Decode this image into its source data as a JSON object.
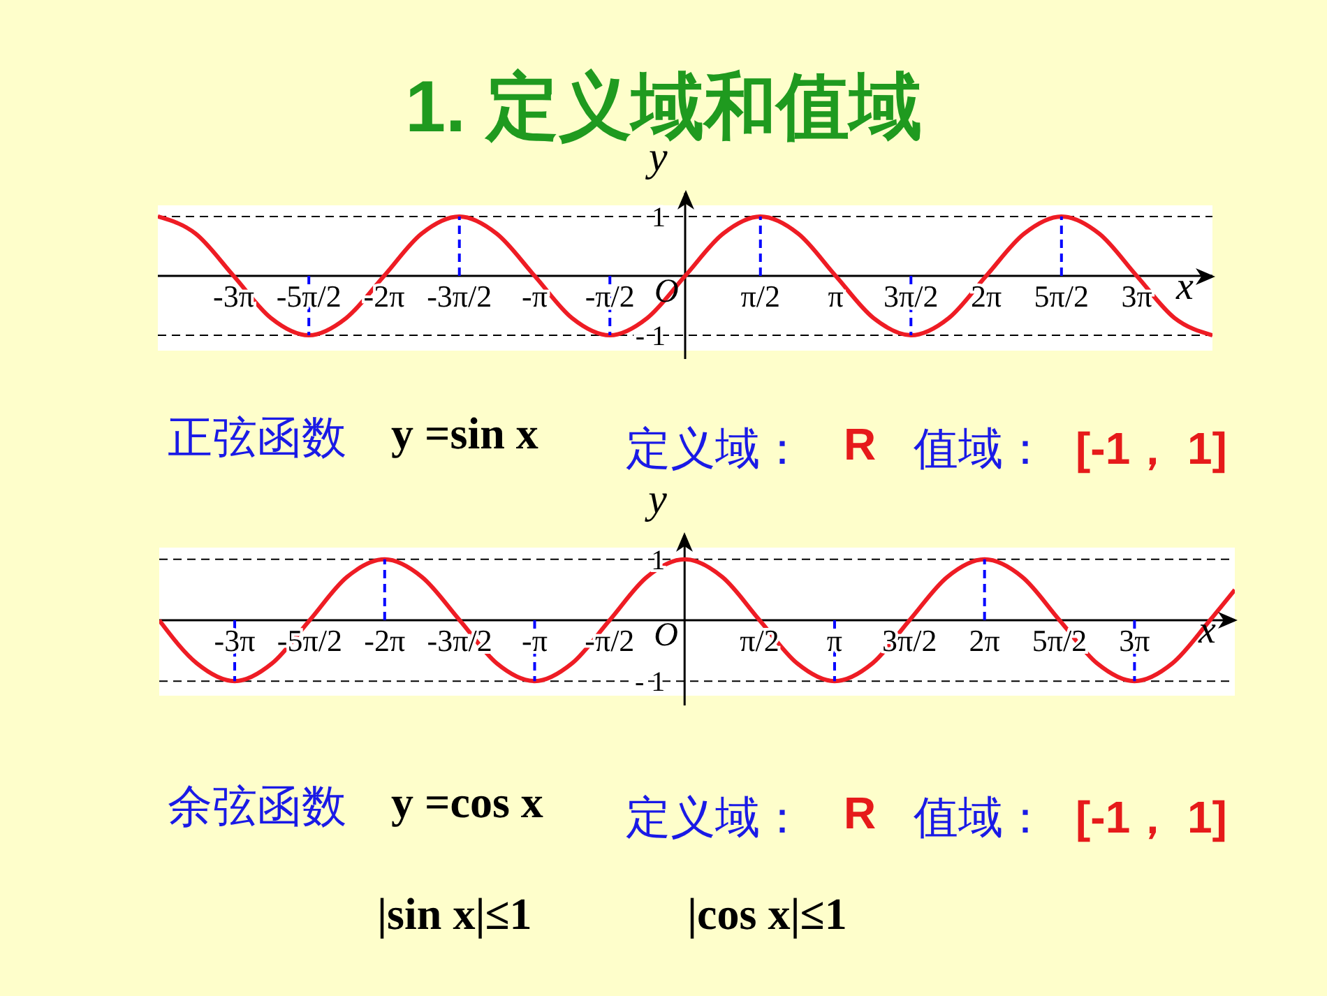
{
  "chart_data": [
    {
      "type": "line",
      "title": "1. 定义域和值域",
      "xlabel": "x",
      "ylabel": "y",
      "xlim": [
        -11.0,
        11.0
      ],
      "ylim": [
        -1.4,
        1.4
      ],
      "xticks": [
        {
          "value": -9.42,
          "label": "-3π"
        },
        {
          "value": -7.85,
          "label": "-5π/2"
        },
        {
          "value": -6.28,
          "label": "-2π"
        },
        {
          "value": -4.71,
          "label": "-3π/2"
        },
        {
          "value": -3.14,
          "label": "-π"
        },
        {
          "value": -1.57,
          "label": "-π/2"
        },
        {
          "value": 1.57,
          "label": "π/2"
        },
        {
          "value": 3.14,
          "label": "π"
        },
        {
          "value": 4.71,
          "label": "3π/2"
        },
        {
          "value": 6.28,
          "label": "2π"
        },
        {
          "value": 7.85,
          "label": "5π/2"
        },
        {
          "value": 9.42,
          "label": "3π"
        }
      ],
      "yticks": [
        1,
        {
          "value": -1,
          "label": "- 1"
        }
      ],
      "marker": "none",
      "line_style": "solid",
      "grid": false,
      "series": [
        {
          "color": "#ee1c24",
          "x": [
            -11.0,
            -10.21,
            -9.42,
            -8.64,
            -7.85,
            -7.07,
            -6.28,
            -5.5,
            -4.71,
            -3.93,
            -3.14,
            -2.36,
            -1.57,
            -0.79,
            0,
            0.79,
            1.57,
            2.36,
            3.14,
            3.93,
            4.71,
            5.5,
            6.28,
            7.07,
            7.85,
            8.64,
            9.42,
            10.21,
            11.0
          ],
          "values": [
            1,
            0.71,
            0,
            -0.71,
            -1,
            -0.71,
            0,
            0.71,
            1,
            0.71,
            0,
            -0.71,
            -1,
            -0.71,
            0,
            0.71,
            1,
            0.71,
            0,
            -0.71,
            -1,
            -0.71,
            0,
            0.71,
            1,
            0.71,
            0,
            -0.71,
            -1
          ]
        },
        {
          "type": "line",
          "line_style": "dashed",
          "color": "#0000ff",
          "x": [
            -7.85,
            -7.85
          ],
          "values": [
            0,
            -1
          ]
        },
        {
          "type": "line",
          "line_style": "dashed",
          "color": "#0000ff",
          "x": [
            -4.71,
            -4.71
          ],
          "values": [
            0,
            1
          ]
        },
        {
          "type": "line",
          "line_style": "dashed",
          "color": "#0000ff",
          "x": [
            -1.57,
            -1.57
          ],
          "values": [
            0,
            -1
          ]
        },
        {
          "type": "line",
          "line_style": "dashed",
          "color": "#0000ff",
          "x": [
            1.57,
            1.57
          ],
          "values": [
            0,
            1
          ]
        },
        {
          "type": "line",
          "line_style": "dashed",
          "color": "#0000ff",
          "x": [
            4.71,
            4.71
          ],
          "values": [
            0,
            -1
          ]
        },
        {
          "type": "line",
          "line_style": "dashed",
          "color": "#0000ff",
          "x": [
            7.85,
            7.85
          ],
          "values": [
            0,
            1
          ]
        }
      ],
      "ref_lines": [
        {
          "axis": "y",
          "value": 1,
          "color": "#000000",
          "line_style": "dashed"
        },
        {
          "axis": "y",
          "value": -1,
          "color": "#000000",
          "line_style": "dashed"
        }
      ],
      "annotations": [
        "O",
        "正弦函数",
        "y =sin x",
        "定义域：",
        "R",
        "值域：",
        "[-1， 1]"
      ]
    },
    {
      "type": "line",
      "xlabel": "x",
      "ylabel": "y",
      "xlim": [
        -11.0,
        11.52
      ],
      "ylim": [
        -1.4,
        1.4
      ],
      "xticks": [
        {
          "value": -9.42,
          "label": "-3π"
        },
        {
          "value": -7.85,
          "label": "-5π/2"
        },
        {
          "value": -6.28,
          "label": "-2π"
        },
        {
          "value": -4.71,
          "label": "-3π/2"
        },
        {
          "value": -3.14,
          "label": "-π"
        },
        {
          "value": -1.57,
          "label": "-π/2"
        },
        {
          "value": 1.57,
          "label": "π/2"
        },
        {
          "value": 3.14,
          "label": "π"
        },
        {
          "value": 4.71,
          "label": "3π/2"
        },
        {
          "value": 6.28,
          "label": "2π"
        },
        {
          "value": 7.85,
          "label": "5π/2"
        },
        {
          "value": 9.42,
          "label": "3π"
        }
      ],
      "yticks": [
        1,
        {
          "value": -1,
          "label": "- 1"
        }
      ],
      "marker": "none",
      "line_style": "solid",
      "grid": false,
      "series": [
        {
          "color": "#ee1c24",
          "x": [
            -11.0,
            -10.21,
            -9.42,
            -8.64,
            -7.85,
            -7.07,
            -6.28,
            -5.5,
            -4.71,
            -3.93,
            -3.14,
            -2.36,
            -1.57,
            -0.79,
            0,
            0.79,
            1.57,
            2.36,
            3.14,
            3.93,
            4.71,
            5.5,
            6.28,
            7.07,
            7.85,
            8.64,
            9.42,
            10.21,
            11.0,
            11.52
          ],
          "values": [
            0,
            -0.71,
            -1,
            -0.71,
            0,
            0.71,
            1,
            0.71,
            0,
            -0.71,
            -1,
            -0.71,
            0,
            0.71,
            1,
            0.71,
            0,
            -0.71,
            -1,
            -0.71,
            0,
            0.71,
            1,
            0.71,
            0,
            -0.71,
            -1,
            -0.71,
            0,
            0.5
          ]
        },
        {
          "type": "line",
          "line_style": "dashed",
          "color": "#0000ff",
          "x": [
            -9.42,
            -9.42
          ],
          "values": [
            0,
            -1
          ]
        },
        {
          "type": "line",
          "line_style": "dashed",
          "color": "#0000ff",
          "x": [
            -6.28,
            -6.28
          ],
          "values": [
            0,
            1
          ]
        },
        {
          "type": "line",
          "line_style": "dashed",
          "color": "#0000ff",
          "x": [
            -3.14,
            -3.14
          ],
          "values": [
            0,
            -1
          ]
        },
        {
          "type": "line",
          "line_style": "dashed",
          "color": "#0000ff",
          "x": [
            3.14,
            3.14
          ],
          "values": [
            0,
            -1
          ]
        },
        {
          "type": "line",
          "line_style": "dashed",
          "color": "#0000ff",
          "x": [
            6.28,
            6.28
          ],
          "values": [
            0,
            1
          ]
        },
        {
          "type": "line",
          "line_style": "dashed",
          "color": "#0000ff",
          "x": [
            9.42,
            9.42
          ],
          "values": [
            0,
            -1
          ]
        }
      ],
      "ref_lines": [
        {
          "axis": "y",
          "value": 1,
          "color": "#000000",
          "line_style": "dashed"
        },
        {
          "axis": "y",
          "value": -1,
          "color": "#000000",
          "line_style": "dashed"
        }
      ],
      "annotations": [
        "O",
        "余弦函数",
        "y =cos x",
        "定义域：",
        "R",
        "值域：",
        "[-1， 1]",
        "|sin x|≤1",
        "|cos x|≤1"
      ]
    }
  ]
}
